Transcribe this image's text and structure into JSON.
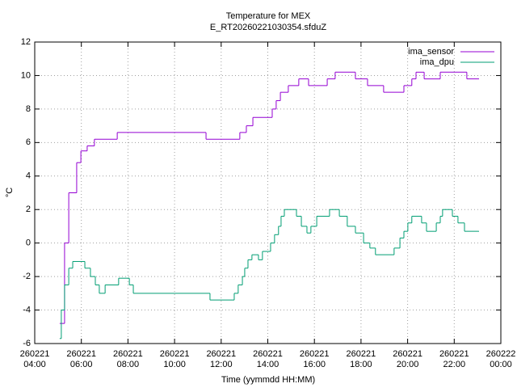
{
  "chart_data": {
    "type": "line",
    "line_style": "steps",
    "title": "Temperature for MEX",
    "subtitle": "E_RT20260221030354.sfduZ",
    "x_label": "Time (yymmdd HH:MM)",
    "y_label": "°C",
    "xlim": [
      4,
      24
    ],
    "ylim": [
      -6,
      12
    ],
    "xticks": [
      {
        "value": 4,
        "label": "260221 04:00"
      },
      {
        "value": 6,
        "label": "260221 06:00"
      },
      {
        "value": 8,
        "label": "260221 08:00"
      },
      {
        "value": 10,
        "label": "260221 10:00"
      },
      {
        "value": 12,
        "label": "260221 12:00"
      },
      {
        "value": 14,
        "label": "260221 14:00"
      },
      {
        "value": 16,
        "label": "260221 16:00"
      },
      {
        "value": 18,
        "label": "260221 18:00"
      },
      {
        "value": 20,
        "label": "260221 20:00"
      },
      {
        "value": 22,
        "label": "260221 22:00"
      },
      {
        "value": 24,
        "label": "260222 00:00"
      }
    ],
    "yticks": [
      -6,
      -4,
      -2,
      0,
      2,
      4,
      6,
      8,
      10,
      12
    ],
    "grid": true,
    "legend": "top-right",
    "series": [
      {
        "name": "ima_sensor",
        "color": "#9400d3",
        "x": [
          5.07,
          5.28,
          5.46,
          5.8,
          5.98,
          6.25,
          6.56,
          7.54,
          11.35,
          12.8,
          13.08,
          13.36,
          14.19,
          14.36,
          14.54,
          14.88,
          15.33,
          15.75,
          16.55,
          16.89,
          17.76,
          18.28,
          18.97,
          19.84,
          20.18,
          20.36,
          20.71,
          21.4,
          22.54,
          23.03
        ],
        "values": [
          -4.8,
          0,
          3,
          4.8,
          5.5,
          5.8,
          6.2,
          6.6,
          6.2,
          6.6,
          7.0,
          7.5,
          8.0,
          8.5,
          9.0,
          9.4,
          9.8,
          9.4,
          9.8,
          10.2,
          9.8,
          9.4,
          9.0,
          9.4,
          9.8,
          10.2,
          9.8,
          10.2,
          9.8,
          9.8
        ]
      },
      {
        "name": "ima_dpu",
        "color": "#009e73",
        "x": [
          5.07,
          5.14,
          5.28,
          5.46,
          5.63,
          6.15,
          6.39,
          6.6,
          6.77,
          7.02,
          7.6,
          8.06,
          8.23,
          11.52,
          12.56,
          12.73,
          12.91,
          13.01,
          13.15,
          13.32,
          13.6,
          13.77,
          14.12,
          14.29,
          14.46,
          14.57,
          14.71,
          15.23,
          15.44,
          15.68,
          15.85,
          16.1,
          16.65,
          17.07,
          17.41,
          17.76,
          18.11,
          18.38,
          18.62,
          19.42,
          19.67,
          19.84,
          20.01,
          20.18,
          20.6,
          20.81,
          21.23,
          21.4,
          21.5,
          21.92,
          22.16,
          22.44,
          23.03
        ],
        "values": [
          -5.7,
          -4,
          -2.5,
          -1.5,
          -1.1,
          -1.5,
          -2.0,
          -2.5,
          -3.0,
          -2.5,
          -2.1,
          -2.5,
          -3.0,
          -3.4,
          -3.0,
          -2.5,
          -2.0,
          -1.5,
          -1.0,
          -0.7,
          -1.0,
          -0.5,
          0,
          0.5,
          1.0,
          1.6,
          2.0,
          1.6,
          1.0,
          0.6,
          1.0,
          1.6,
          2.0,
          1.6,
          1.0,
          0.6,
          0,
          -0.3,
          -0.7,
          -0.3,
          0.3,
          0.7,
          1.2,
          1.6,
          1.2,
          0.7,
          1.2,
          1.6,
          2.0,
          1.6,
          1.2,
          0.7,
          0.7
        ]
      }
    ]
  }
}
